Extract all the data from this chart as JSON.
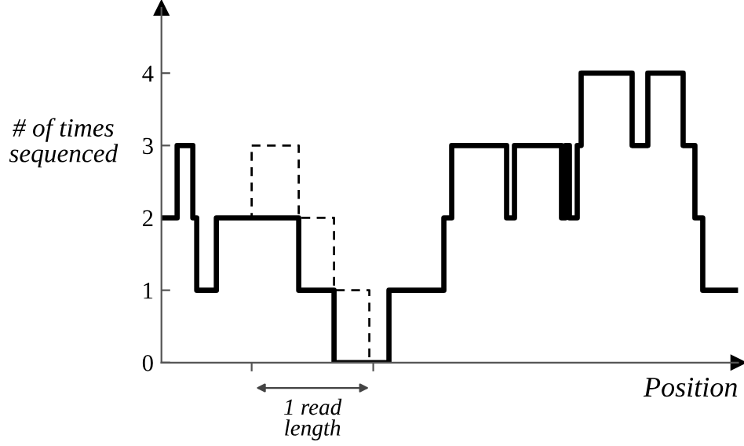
{
  "chart_data": {
    "type": "step",
    "ylabel": "# of times\nsequenced",
    "xlabel": "Position",
    "ylim": [
      0,
      4.9
    ],
    "yticks": [
      0,
      1,
      2,
      3,
      4
    ],
    "categories": [
      null,
      null,
      null,
      null,
      null,
      null,
      null,
      null,
      null,
      null,
      null,
      null,
      null,
      null,
      null,
      null,
      null,
      null,
      null,
      null,
      null,
      null,
      null,
      null,
      null,
      null,
      null,
      null,
      null,
      null,
      null,
      null,
      null,
      null,
      null,
      null,
      null,
      null,
      null,
      null,
      null,
      null,
      null,
      null,
      null,
      null,
      null,
      null,
      null,
      null,
      null,
      null,
      null,
      null,
      null,
      null,
      null,
      null,
      null,
      null,
      null,
      null,
      null,
      null,
      null,
      null,
      null,
      null,
      null,
      null,
      null,
      null,
      null,
      null,
      null,
      null,
      null,
      null,
      null,
      null,
      null,
      null,
      null,
      null,
      null,
      null,
      null,
      null,
      null,
      null,
      null,
      null,
      null,
      null,
      null,
      null,
      null,
      null,
      null,
      null,
      null,
      null,
      null,
      null,
      null,
      null,
      null,
      null,
      null,
      null,
      null,
      null,
      null,
      null,
      null,
      null,
      null,
      null,
      null,
      null,
      null,
      null,
      null,
      null,
      null,
      null,
      null,
      null,
      null,
      null,
      null,
      null,
      null,
      null,
      null,
      null,
      null,
      null,
      null,
      null,
      null,
      null,
      null,
      null,
      null,
      null,
      null,
      null
    ],
    "series": [
      {
        "color": "#000000",
        "line_style": "solid",
        "values": [
          2,
          2,
          2,
          2,
          3,
          3,
          3,
          3,
          2,
          1,
          1,
          1,
          1,
          1,
          2,
          2,
          2,
          2,
          2,
          2,
          2,
          2,
          2,
          2,
          2,
          2,
          2,
          2,
          2,
          2,
          2,
          2,
          2,
          2,
          2,
          1,
          1,
          1,
          1,
          1,
          1,
          1,
          1,
          1,
          0,
          0,
          0,
          0,
          0,
          0,
          0,
          0,
          0,
          0,
          0,
          0,
          0,
          0,
          1,
          1,
          1,
          1,
          1,
          1,
          1,
          1,
          1,
          1,
          1,
          1,
          1,
          1,
          2,
          2,
          3,
          3,
          3,
          3,
          3,
          3,
          3,
          3,
          3,
          3,
          3,
          3,
          3,
          3,
          2,
          2,
          3,
          3,
          3,
          3,
          3,
          3,
          3,
          3,
          3,
          3,
          3,
          3,
          2,
          3,
          2,
          2,
          3,
          4,
          4,
          4,
          4,
          4,
          4,
          4,
          4,
          4,
          4,
          4,
          4,
          4,
          3,
          3,
          3,
          3,
          4,
          4,
          4,
          4,
          4,
          4,
          4,
          4,
          4,
          3,
          3,
          3,
          2,
          2,
          1,
          1,
          1,
          1,
          1,
          1,
          1,
          1,
          1,
          1
        ]
      },
      {
        "color": "#000000",
        "line_style": "dashed",
        "values": [
          null,
          null,
          null,
          null,
          null,
          null,
          null,
          null,
          null,
          null,
          null,
          null,
          null,
          null,
          null,
          null,
          null,
          null,
          null,
          null,
          null,
          null,
          2,
          3,
          3,
          3,
          3,
          3,
          3,
          3,
          3,
          3,
          3,
          3,
          3,
          2,
          2,
          2,
          2,
          2,
          2,
          2,
          2,
          2,
          1,
          1,
          1,
          1,
          1,
          1,
          1,
          1,
          1,
          0,
          0,
          null,
          null,
          null,
          null,
          null,
          null,
          null,
          null,
          null,
          null,
          null,
          null,
          null,
          null,
          null,
          null,
          null,
          null,
          null,
          null,
          null,
          null,
          null,
          null,
          null,
          null,
          null,
          null,
          null,
          null,
          null,
          null,
          null,
          null,
          null,
          null,
          null,
          null,
          null,
          null,
          null,
          null,
          null,
          null,
          null,
          null,
          null,
          null,
          null,
          null,
          null,
          null,
          null,
          null,
          null,
          null,
          null,
          null,
          null,
          null,
          null,
          null,
          null,
          null,
          null,
          null,
          null,
          null,
          null,
          null,
          null,
          null,
          null,
          null,
          null,
          null,
          null,
          null,
          null,
          null,
          null,
          null,
          null,
          null,
          null,
          null,
          null,
          null,
          null,
          null,
          null,
          null,
          null
        ]
      }
    ],
    "annotations": [
      "1 read\nlength"
    ],
    "grid": false,
    "marker": "none"
  }
}
